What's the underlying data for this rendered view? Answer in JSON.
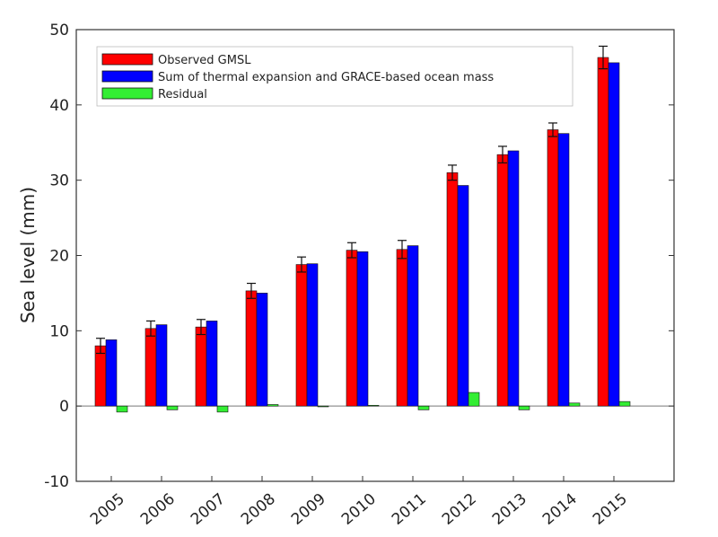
{
  "chart_data": {
    "type": "bar",
    "title": "",
    "xlabel": "",
    "ylabel": "Sea level (mm)",
    "ylim": [
      -10,
      50
    ],
    "yticks": [
      -10,
      0,
      10,
      20,
      30,
      40,
      50
    ],
    "grid": false,
    "legend_position": "top-left",
    "categories": [
      "2005",
      "2006",
      "2007",
      "2008",
      "2009",
      "2010",
      "2011",
      "2012",
      "2013",
      "2014",
      "2015"
    ],
    "series": [
      {
        "name": "Observed GMSL",
        "color": "#ff0000",
        "values": [
          8.0,
          10.3,
          10.5,
          15.3,
          18.8,
          20.7,
          20.8,
          31.0,
          33.4,
          36.7,
          46.3
        ],
        "error": [
          1.0,
          1.0,
          1.0,
          1.0,
          1.0,
          1.0,
          1.2,
          1.0,
          1.1,
          0.9,
          1.5
        ]
      },
      {
        "name": "Sum of thermal expansion and GRACE-based ocean mass",
        "color": "#0000ff",
        "values": [
          8.8,
          10.8,
          11.3,
          15.0,
          18.9,
          20.5,
          21.3,
          29.3,
          33.9,
          36.2,
          45.6
        ]
      },
      {
        "name": "Residual",
        "color": "#33ee33",
        "values": [
          -0.8,
          -0.5,
          -0.8,
          0.2,
          -0.1,
          0.1,
          -0.5,
          1.8,
          -0.5,
          0.4,
          0.6
        ]
      }
    ]
  }
}
